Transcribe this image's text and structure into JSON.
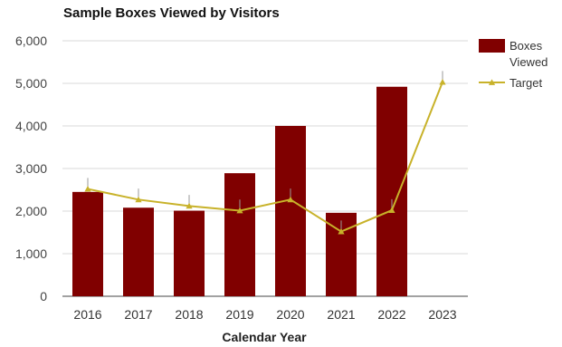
{
  "chart_data": {
    "type": "bar",
    "title": "Sample Boxes Viewed by Visitors",
    "xlabel": "Calendar Year",
    "ylabel": "",
    "categories": [
      "2016",
      "2017",
      "2018",
      "2019",
      "2020",
      "2021",
      "2022",
      "2023"
    ],
    "series": [
      {
        "name": "Boxes Viewed",
        "type": "bar",
        "color": "#800000",
        "values": [
          2450,
          2080,
          2010,
          2890,
          4000,
          1960,
          4920,
          0
        ]
      },
      {
        "name": "Target",
        "type": "line",
        "color": "#c8b22a",
        "marker": "triangle",
        "values": [
          2520,
          2270,
          2120,
          2010,
          2270,
          1520,
          2020,
          5030
        ],
        "error_upper": [
          2780,
          2530,
          2380,
          2270,
          2530,
          1780,
          2280,
          5290
        ]
      }
    ],
    "yticks": [
      "0",
      "1,000",
      "2,000",
      "3,000",
      "4,000",
      "5,000",
      "6,000"
    ],
    "ylim": [
      0,
      6000
    ],
    "grid": true,
    "legend_position": "right",
    "legend_labels": {
      "bar_line1": "Boxes",
      "bar_line2": "Viewed",
      "line": "Target"
    }
  }
}
